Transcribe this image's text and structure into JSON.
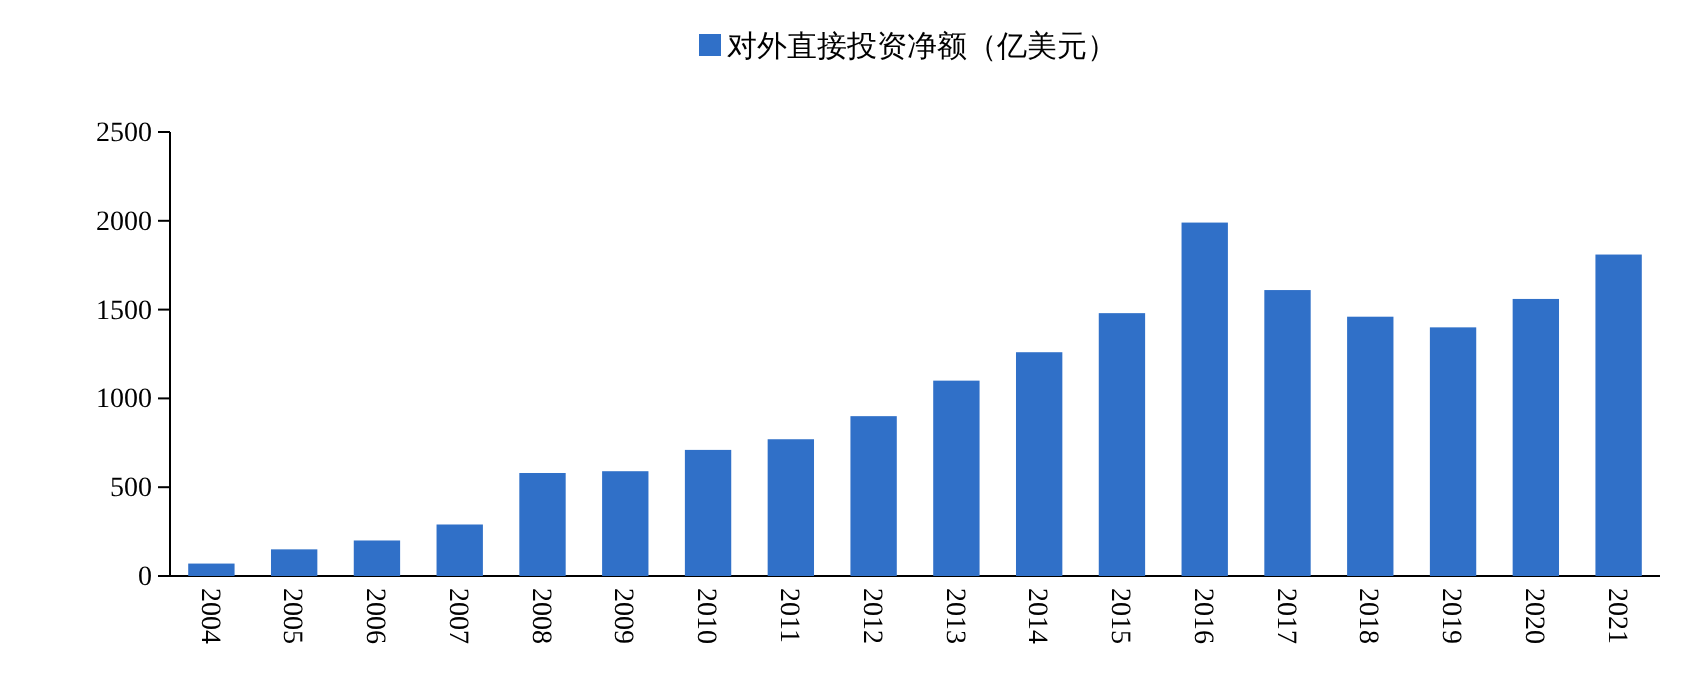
{
  "chart_data": {
    "type": "bar",
    "categories": [
      "2004",
      "2005",
      "2006",
      "2007",
      "2008",
      "2009",
      "2010",
      "2011",
      "2012",
      "2013",
      "2014",
      "2015",
      "2016",
      "2017",
      "2018",
      "2019",
      "2020",
      "2021"
    ],
    "series": [
      {
        "name": "对外直接投资净额（亿美元）",
        "color": "#3070c8",
        "values": [
          70,
          150,
          200,
          290,
          580,
          590,
          710,
          770,
          900,
          1100,
          1260,
          1480,
          1990,
          1610,
          1460,
          1400,
          1560,
          1810
        ]
      }
    ],
    "ylim": [
      0,
      2500
    ],
    "yticks": [
      0,
      500,
      1000,
      1500,
      2000,
      2500
    ],
    "grid": false,
    "legend": "top"
  }
}
